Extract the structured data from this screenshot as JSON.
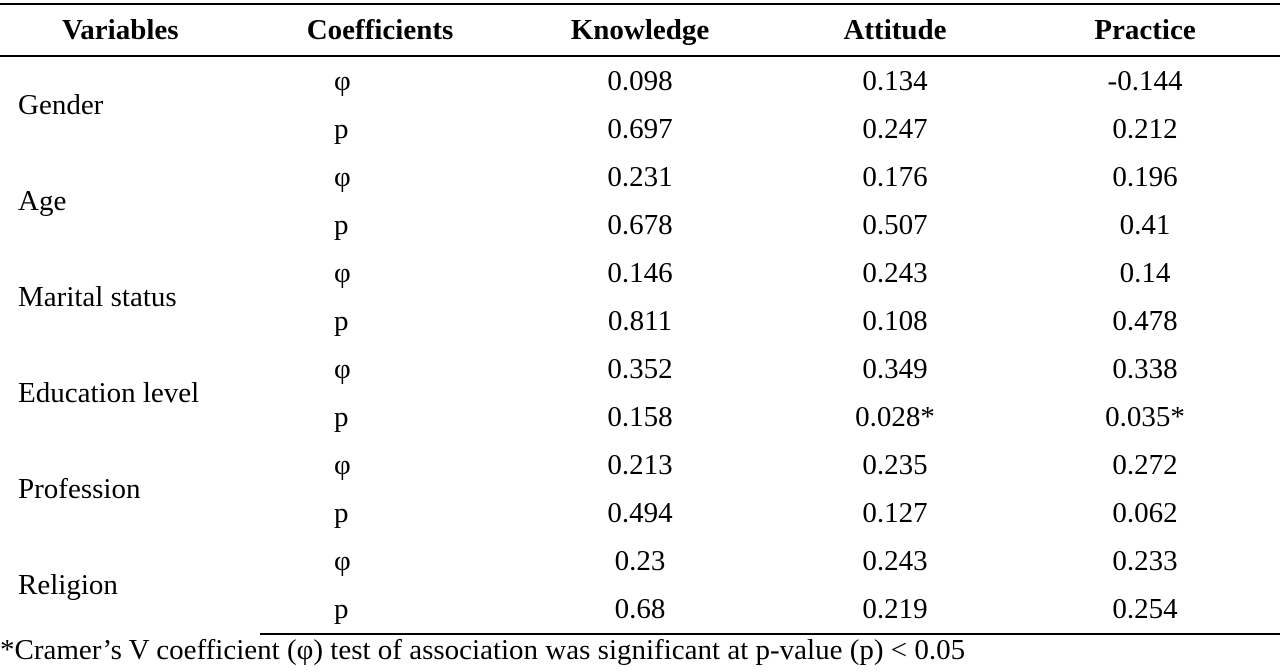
{
  "table": {
    "headers": {
      "variables": "Variables",
      "coefficients": "Coefficients",
      "knowledge": "Knowledge",
      "attitude": "Attitude",
      "practice": "Practice"
    },
    "rows": [
      {
        "name": "Gender",
        "phi": {
          "coef": "φ",
          "knowledge": "0.098",
          "attitude": "0.134",
          "practice": "-0.144"
        },
        "p": {
          "coef": "p",
          "knowledge": "0.697",
          "attitude": "0.247",
          "practice": "0.212"
        }
      },
      {
        "name": "Age",
        "phi": {
          "coef": "φ",
          "knowledge": "0.231",
          "attitude": "0.176",
          "practice": "0.196"
        },
        "p": {
          "coef": "p",
          "knowledge": "0.678",
          "attitude": "0.507",
          "practice": "0.41"
        }
      },
      {
        "name": "Marital status",
        "phi": {
          "coef": "φ",
          "knowledge": "0.146",
          "attitude": "0.243",
          "practice": "0.14"
        },
        "p": {
          "coef": "p",
          "knowledge": "0.811",
          "attitude": "0.108",
          "practice": "0.478"
        }
      },
      {
        "name": "Education level",
        "phi": {
          "coef": "φ",
          "knowledge": "0.352",
          "attitude": "0.349",
          "practice": "0.338"
        },
        "p": {
          "coef": "p",
          "knowledge": "0.158",
          "attitude": "0.028*",
          "practice": "0.035*"
        }
      },
      {
        "name": "Profession",
        "phi": {
          "coef": "φ",
          "knowledge": "0.213",
          "attitude": "0.235",
          "practice": "0.272"
        },
        "p": {
          "coef": "p",
          "knowledge": "0.494",
          "attitude": "0.127",
          "practice": "0.062"
        }
      },
      {
        "name": "Religion",
        "phi": {
          "coef": "φ",
          "knowledge": "0.23",
          "attitude": "0.243",
          "practice": "0.233"
        },
        "p": {
          "coef": "p",
          "knowledge": "0.68",
          "attitude": "0.219",
          "practice": "0.254"
        }
      }
    ]
  },
  "footnote": "*Cramer’s V coefficient (φ) test of association was significant at p-value (p) < 0.05"
}
